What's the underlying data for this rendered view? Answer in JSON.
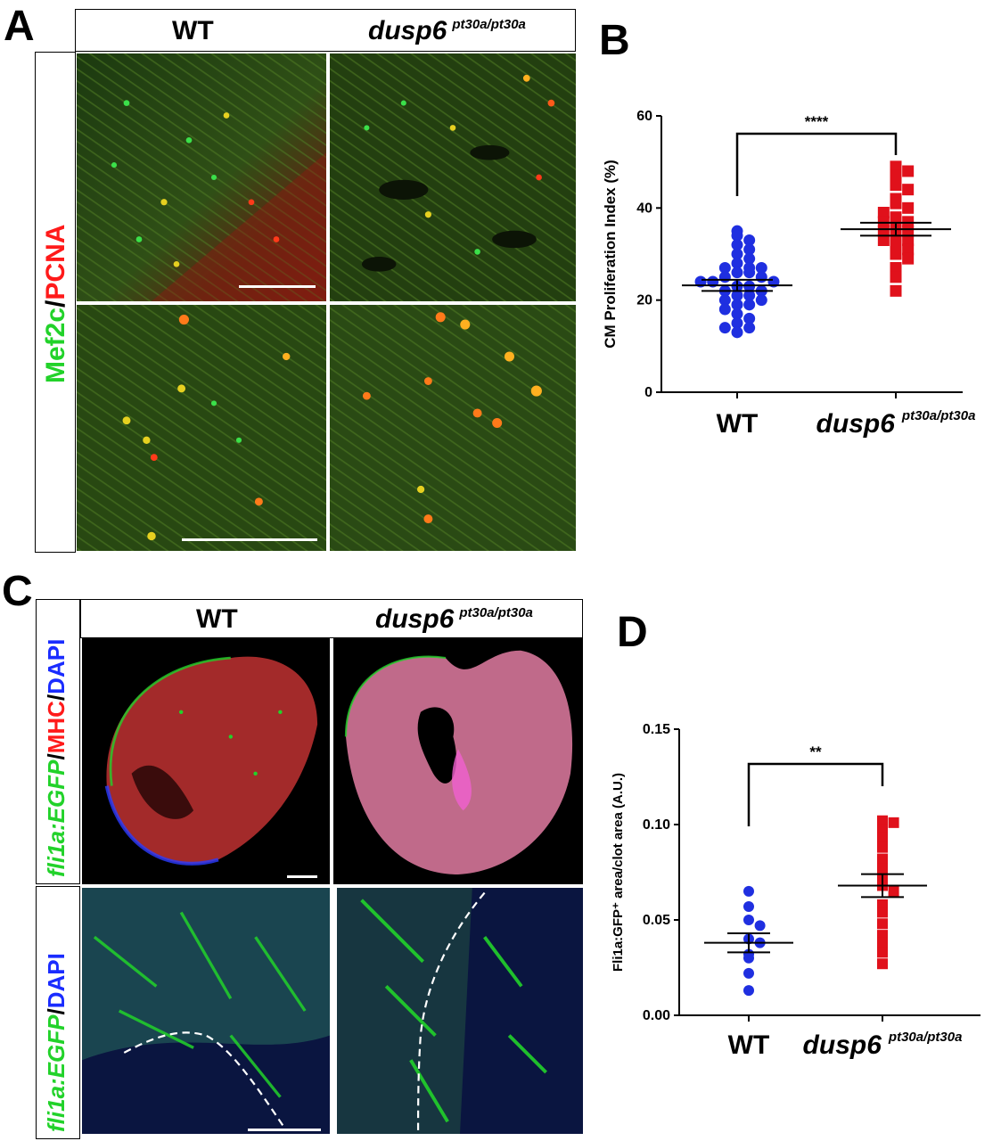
{
  "panels": {
    "A": {
      "letter": "A",
      "wt_label": "WT",
      "mut_label": "dusp6",
      "mut_superscript": "pt30a/pt30a",
      "stain_left": "Mef2c",
      "stain_sep": "/",
      "stain_right": "PCNA"
    },
    "B": {
      "letter": "B"
    },
    "C": {
      "letter": "C",
      "wt_label": "WT",
      "mut_label": "dusp6",
      "mut_superscript": "pt30a/pt30a",
      "stain_top_1": "fli1a:EGFP",
      "stain_top_2": "/",
      "stain_top_3": "MHC",
      "stain_top_4": "/",
      "stain_top_5": "DAPI",
      "stain_bot_1": "fli1a:EGFP",
      "stain_bot_2": "/",
      "stain_bot_3": "DAPI"
    },
    "D": {
      "letter": "D"
    }
  },
  "colors": {
    "wt": "#1f2fe0",
    "mut": "#e0111b",
    "green": "#22d22a",
    "red": "#ff1a1a",
    "blue": "#1a2cff"
  },
  "chart_data": [
    {
      "type": "scatter",
      "panel": "B",
      "ylabel": "CM Proliferation Index (%)",
      "ylim": [
        0,
        60
      ],
      "yticks": [
        "0",
        "20",
        "40",
        "60"
      ],
      "categories": [
        "WT",
        "dusp6"
      ],
      "category_superscripts": [
        "",
        "pt30a/pt30a"
      ],
      "significance": "****",
      "series": [
        {
          "group": "WT",
          "marker": "circle",
          "color": "#1f2fe0",
          "mean": 23.2,
          "sem_low": 22.0,
          "sem_high": 24.4,
          "values": [
            35,
            34,
            33,
            32,
            31,
            30,
            29,
            28,
            27,
            27,
            27,
            26,
            26,
            25,
            25,
            24,
            24,
            24,
            23,
            23,
            22,
            22,
            21,
            21,
            20,
            20,
            19,
            19,
            18,
            17,
            16,
            15,
            14,
            14,
            13
          ]
        },
        {
          "group": "dusp6",
          "marker": "square",
          "color": "#e0111b",
          "mean": 35.4,
          "sem_low": 34.0,
          "sem_high": 36.8,
          "values": [
            49,
            48,
            47,
            45,
            44,
            42,
            41,
            40,
            39,
            38,
            37,
            37,
            36,
            35,
            35,
            34,
            33,
            33,
            32,
            31,
            30,
            29,
            27,
            25,
            22
          ]
        }
      ]
    },
    {
      "type": "scatter",
      "panel": "D",
      "ylabel": "Fli1a:GFP⁺ area/clot area (A.U.)",
      "ylim": [
        0,
        0.15
      ],
      "yticks": [
        "0.00",
        "0.05",
        "0.10",
        "0.15"
      ],
      "categories": [
        "WT",
        "dusp6"
      ],
      "category_superscripts": [
        "",
        "pt30a/pt30a"
      ],
      "significance": "**",
      "series": [
        {
          "group": "WT",
          "marker": "circle",
          "color": "#1f2fe0",
          "mean": 0.038,
          "sem_low": 0.033,
          "sem_high": 0.043,
          "values": [
            0.065,
            0.057,
            0.05,
            0.047,
            0.04,
            0.038,
            0.032,
            0.03,
            0.022,
            0.013
          ]
        },
        {
          "group": "dusp6",
          "marker": "square",
          "color": "#e0111b",
          "mean": 0.068,
          "sem_low": 0.062,
          "sem_high": 0.074,
          "values": [
            0.102,
            0.101,
            0.097,
            0.093,
            0.088,
            0.082,
            0.077,
            0.073,
            0.068,
            0.065,
            0.058,
            0.054,
            0.048,
            0.042,
            0.038,
            0.033,
            0.027
          ]
        }
      ]
    }
  ]
}
